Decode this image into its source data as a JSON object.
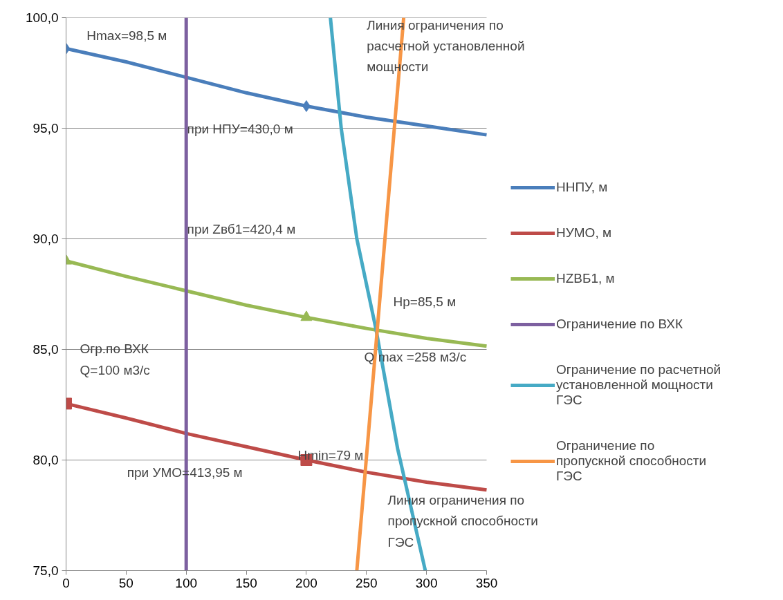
{
  "chart_data": {
    "type": "line",
    "xlim": [
      0,
      350
    ],
    "ylim": [
      75,
      100
    ],
    "xticks": [
      0,
      50,
      100,
      150,
      200,
      250,
      300,
      350
    ],
    "yticks": [
      {
        "value": 75,
        "label": "75,0"
      },
      {
        "value": 80,
        "label": "80,0"
      },
      {
        "value": 85,
        "label": "85,0"
      },
      {
        "value": 90,
        "label": "90,0"
      },
      {
        "value": 95,
        "label": "95,0"
      },
      {
        "value": 100,
        "label": "100,0"
      }
    ],
    "grid": "y",
    "legend": "right",
    "marker": "none",
    "series": [
      {
        "name": "ННПУ, м",
        "color": "#4a7ebb",
        "x": [
          0,
          50,
          100,
          150,
          200,
          250,
          300,
          350
        ],
        "values": [
          98.6,
          98.0,
          97.3,
          96.6,
          96.0,
          95.5,
          95.1,
          94.7
        ]
      },
      {
        "type": "scatter",
        "marker": "diamond",
        "color": "#4a7ebb",
        "x": [
          0,
          200
        ],
        "values": [
          98.6,
          96.0
        ]
      },
      {
        "name": "НУМО, м",
        "color": "#be4b48",
        "x": [
          0,
          50,
          100,
          150,
          200,
          250,
          300,
          350
        ],
        "values": [
          82.55,
          81.9,
          81.2,
          80.6,
          80.0,
          79.45,
          79.0,
          78.65
        ]
      },
      {
        "type": "scatter",
        "marker": "square",
        "color": "#be4b48",
        "x": [
          0,
          200
        ],
        "values": [
          82.55,
          80.0
        ]
      },
      {
        "name": "HZВБ1, м",
        "color": "#98b954",
        "x": [
          0,
          50,
          100,
          150,
          200,
          250,
          300,
          350
        ],
        "values": [
          89.0,
          88.3,
          87.65,
          87.0,
          86.45,
          85.95,
          85.5,
          85.15
        ]
      },
      {
        "type": "scatter",
        "marker": "triangle",
        "color": "#98b954",
        "x": [
          0,
          200
        ],
        "values": [
          89.0,
          86.45
        ]
      },
      {
        "name": "Ограничение по ВХК",
        "color": "#7d60a0",
        "x": [
          100,
          100
        ],
        "values": [
          75,
          100
        ]
      },
      {
        "name": "Ограничение по расчетной установленной мощности ГЭС",
        "color": "#46aac5",
        "x": [
          220,
          229,
          242,
          258,
          276,
          299
        ],
        "values": [
          100,
          95,
          90,
          85.9,
          80.5,
          75
        ]
      },
      {
        "name": "Ограничение по пропускной способности ГЭС",
        "color": "#f79646",
        "x": [
          242,
          259,
          281
        ],
        "values": [
          75,
          85.9,
          100
        ]
      }
    ],
    "annotations": [
      "Hmax=98,5 м",
      "при НПУ=430,0 м",
      "при Zвб1=420,4 м",
      "Огр.по ВХК\nQ=100 м3/с",
      "Hmin=79 м",
      "при УМО=413,95 м",
      "Линия ограничения по\nрасчетной установленной\nмощности",
      "Нр=85,5 м",
      "Q max =258 м3/с",
      "Линия ограничения по\nпропускной способности\nГЭС"
    ]
  }
}
